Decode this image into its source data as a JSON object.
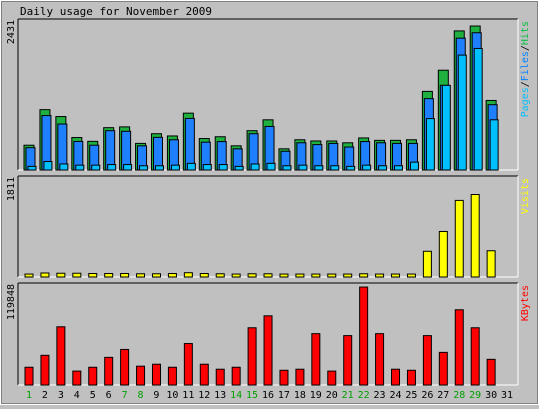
{
  "chart_data": [
    {
      "type": "bar",
      "title": "Daily usage for November 2009",
      "categories": [
        "1",
        "2",
        "3",
        "4",
        "5",
        "6",
        "7",
        "8",
        "9",
        "10",
        "11",
        "12",
        "13",
        "14",
        "15",
        "16",
        "17",
        "18",
        "19",
        "20",
        "21",
        "22",
        "23",
        "24",
        "25",
        "26",
        "27",
        "28",
        "29",
        "30",
        "31"
      ],
      "weekend_days": [
        "1",
        "7",
        "8",
        "14",
        "15",
        "21",
        "22",
        "28",
        "29"
      ],
      "ymax_label": "2431",
      "ylim": [
        0,
        2431
      ],
      "axis_label_parts": [
        {
          "text": "Pages",
          "color": "#00c0ff"
        },
        {
          "text": "/",
          "color": "#000000"
        },
        {
          "text": "Files",
          "color": "#0080ff"
        },
        {
          "text": "/",
          "color": "#000000"
        },
        {
          "text": "Hits",
          "color": "#00c040"
        }
      ],
      "series": [
        {
          "name": "Hits",
          "color": "#20b040",
          "values": [
            410,
            998,
            884,
            537,
            474,
            700,
            713,
            440,
            600,
            563,
            940,
            520,
            550,
            400,
            650,
            830,
            350,
            500,
            480,
            480,
            450,
            530,
            490,
            490,
            500,
            1300,
            1650,
            2300,
            2381,
            1150,
            0
          ]
        },
        {
          "name": "Files",
          "color": "#1f80ff",
          "values": [
            369,
            900,
            760,
            472,
            410,
            650,
            640,
            400,
            540,
            500,
            853,
            460,
            470,
            350,
            600,
            720,
            310,
            450,
            420,
            440,
            380,
            470,
            450,
            440,
            440,
            1180,
            1400,
            2180,
            2270,
            1080,
            0
          ]
        },
        {
          "name": "Pages",
          "color": "#00c0ff",
          "values": [
            60,
            140,
            100,
            80,
            80,
            90,
            90,
            70,
            70,
            80,
            110,
            90,
            90,
            60,
            100,
            110,
            70,
            80,
            70,
            70,
            60,
            80,
            70,
            70,
            130,
            850,
            1400,
            1900,
            2010,
            830,
            0
          ]
        }
      ]
    },
    {
      "type": "bar",
      "categories": [
        "1",
        "2",
        "3",
        "4",
        "5",
        "6",
        "7",
        "8",
        "9",
        "10",
        "11",
        "12",
        "13",
        "14",
        "15",
        "16",
        "17",
        "18",
        "19",
        "20",
        "21",
        "22",
        "23",
        "24",
        "25",
        "26",
        "27",
        "28",
        "29",
        "30",
        "31"
      ],
      "ymax_label": "1811",
      "ylim": [
        0,
        1811
      ],
      "axis_label": "Visits",
      "axis_label_color": "#ffff00",
      "series": [
        {
          "name": "Visits",
          "color": "#ffff00",
          "values": [
            55,
            75,
            70,
            70,
            65,
            65,
            65,
            60,
            60,
            65,
            80,
            65,
            60,
            55,
            60,
            60,
            55,
            55,
            55,
            55,
            55,
            60,
            55,
            55,
            55,
            480,
            850,
            1430,
            1540,
            490,
            0
          ]
        }
      ]
    },
    {
      "type": "bar",
      "categories": [
        "1",
        "2",
        "3",
        "4",
        "5",
        "6",
        "7",
        "8",
        "9",
        "10",
        "11",
        "12",
        "13",
        "14",
        "15",
        "16",
        "17",
        "18",
        "19",
        "20",
        "21",
        "22",
        "23",
        "24",
        "25",
        "26",
        "27",
        "28",
        "29",
        "30",
        "31"
      ],
      "ymax_label": "119848",
      "ylim": [
        0,
        119848
      ],
      "axis_label": "KBytes",
      "axis_label_color": "#ff0000",
      "series": [
        {
          "name": "KBytes",
          "color": "#ff0000",
          "values": [
            21700,
            36300,
            71200,
            17000,
            21700,
            33800,
            43500,
            23000,
            25400,
            21700,
            50700,
            25400,
            19300,
            21700,
            70000,
            84600,
            18000,
            19300,
            62800,
            17000,
            60400,
            119800,
            62800,
            19300,
            18000,
            60400,
            39900,
            92000,
            70000,
            31400,
            0
          ]
        }
      ]
    }
  ]
}
